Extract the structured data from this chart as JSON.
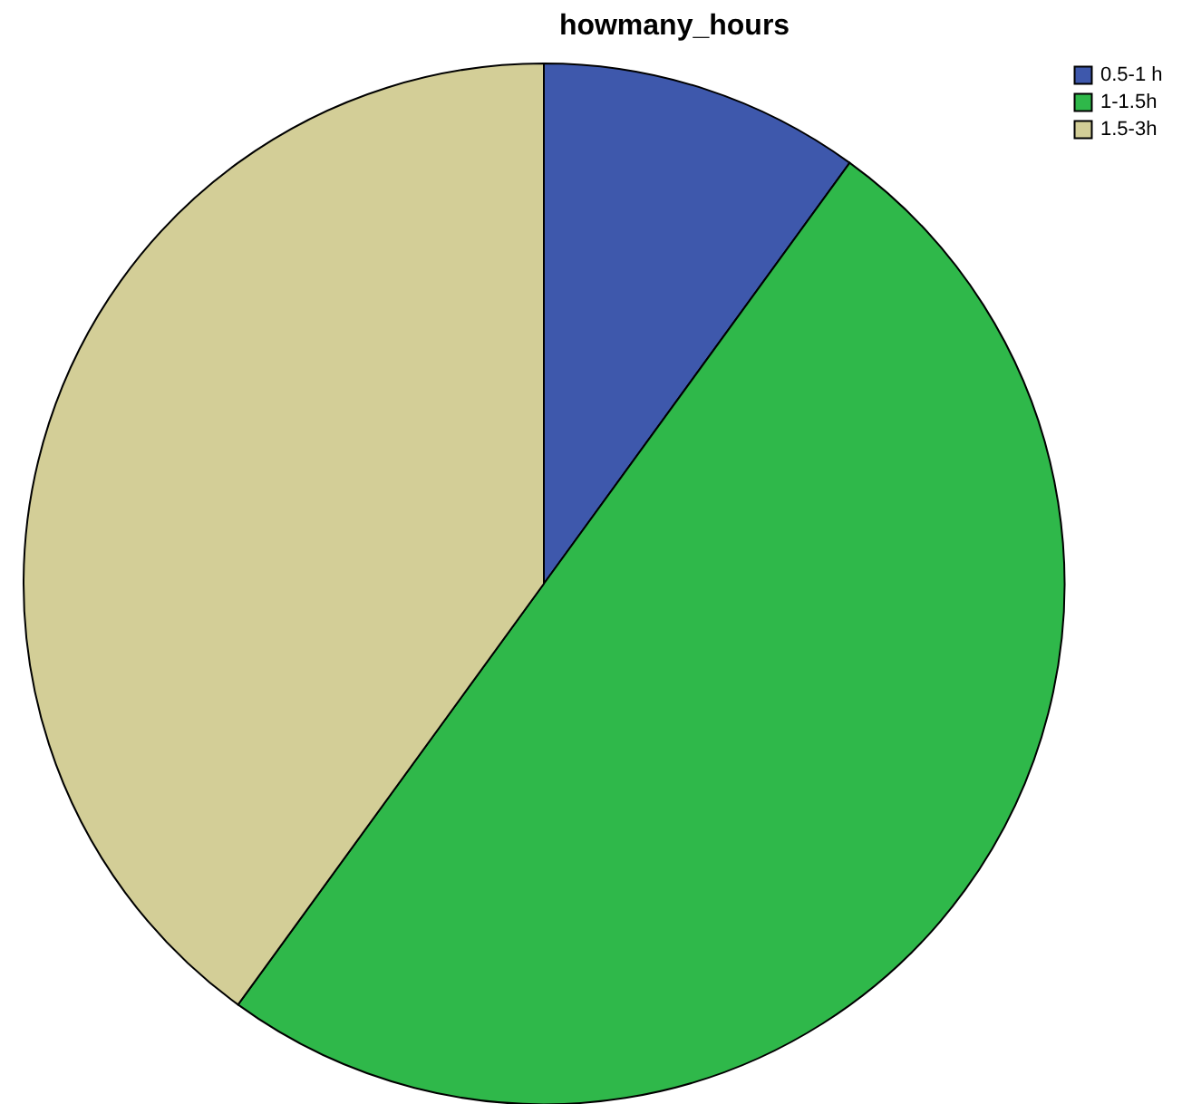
{
  "chart_data": {
    "type": "pie",
    "title": "howmany_hours",
    "categories": [
      "0.5-1 h",
      "1-1.5h",
      "1.5-3h"
    ],
    "values": [
      10,
      50,
      40
    ],
    "colors": [
      "#3e58ac",
      "#2fb84a",
      "#d3ce97"
    ],
    "legend": "top right"
  }
}
